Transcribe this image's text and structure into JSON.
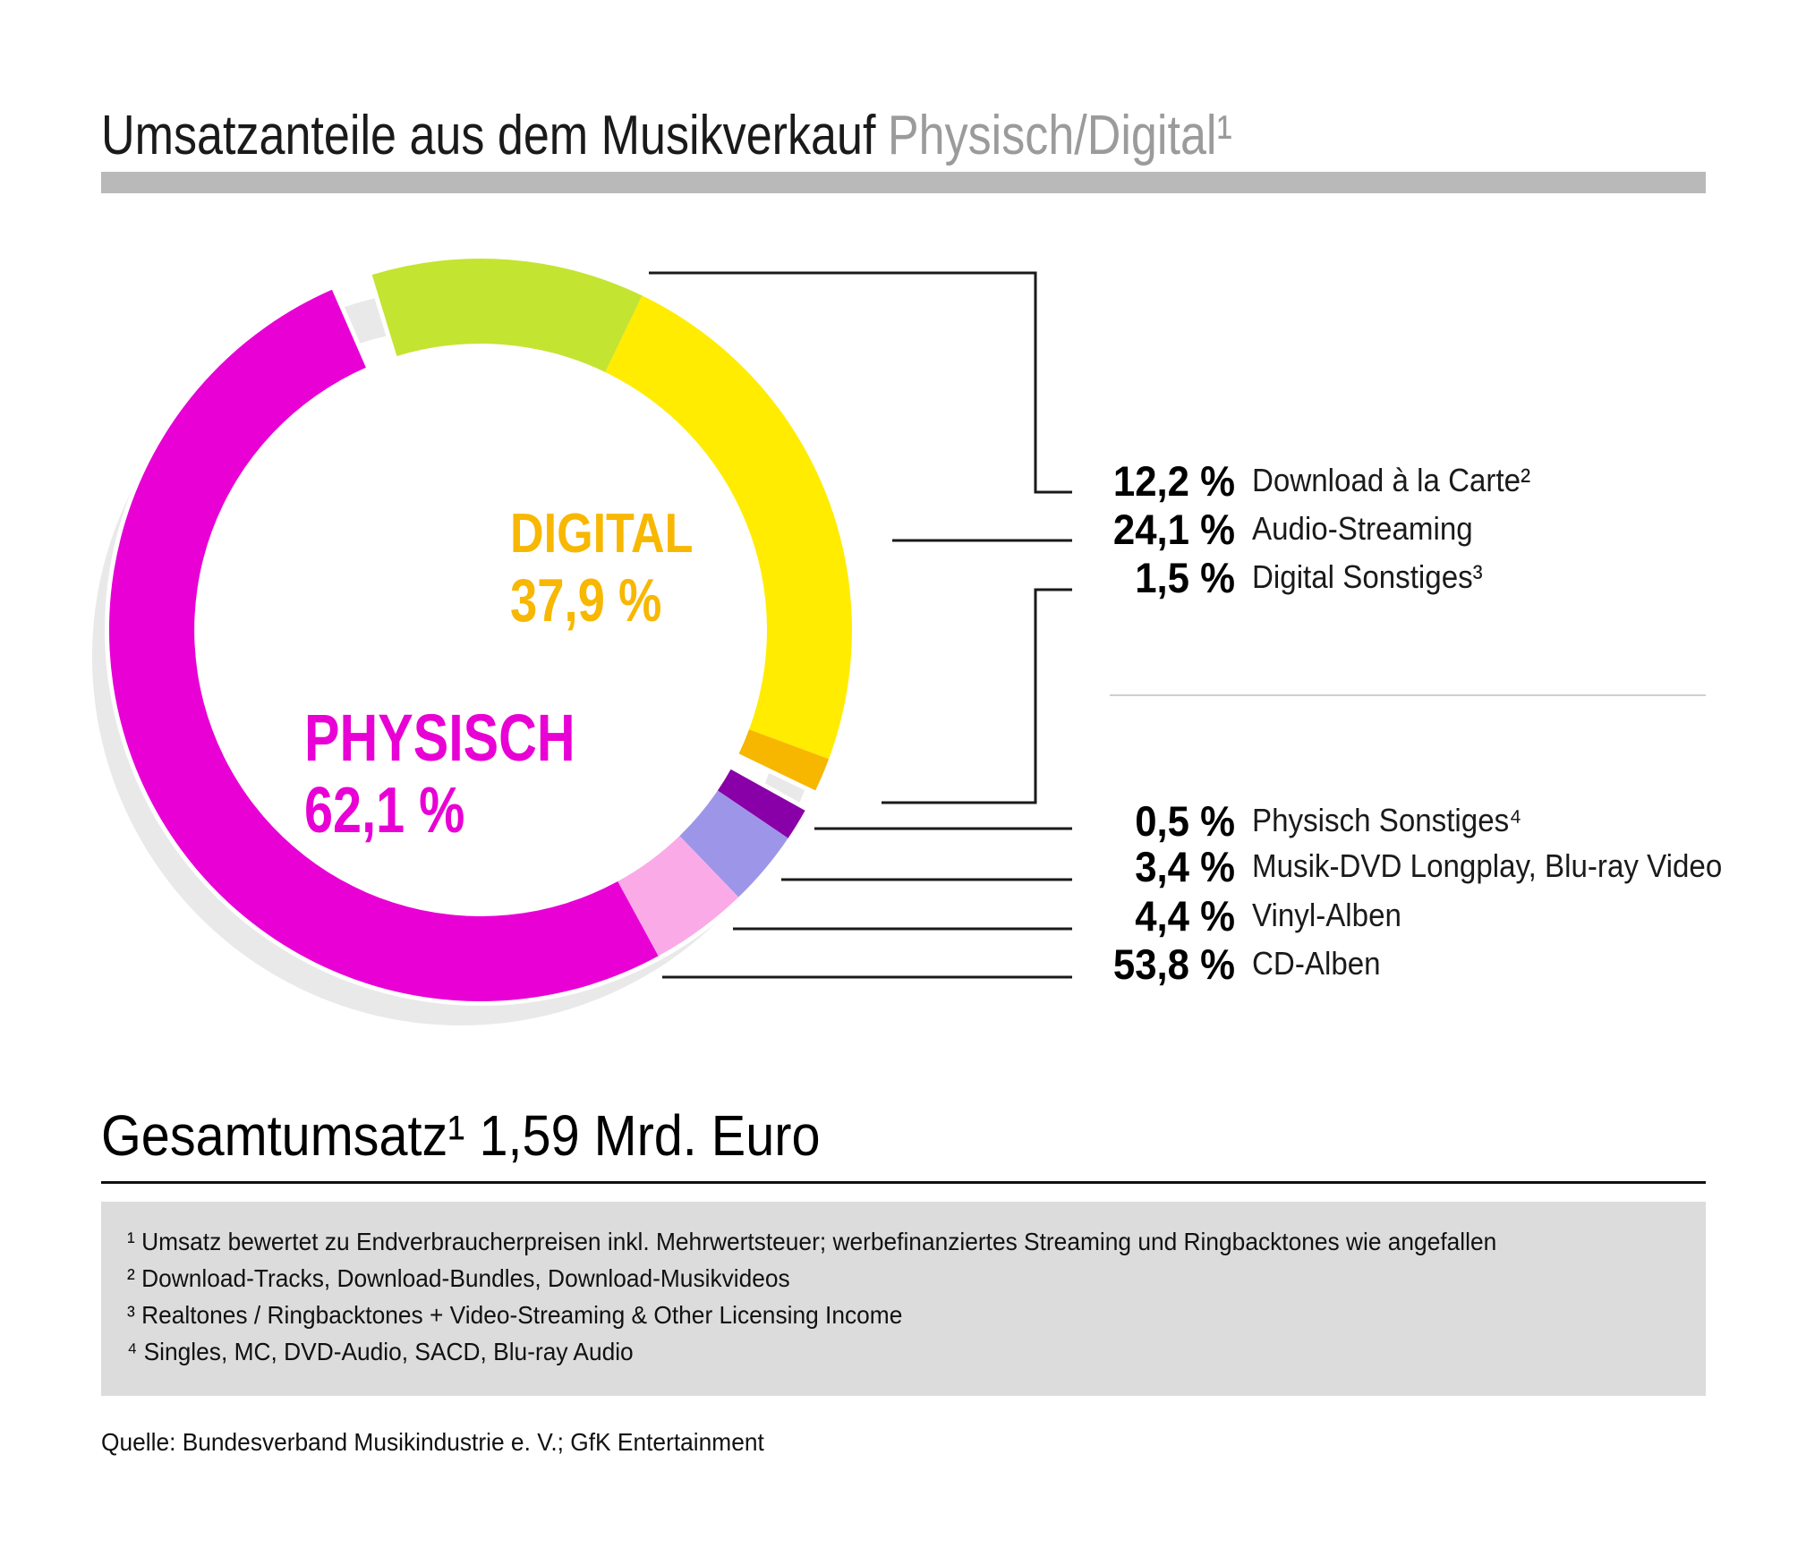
{
  "header": {
    "title": "Umsatzanteile aus dem Musikverkauf",
    "subtitle": "Physisch/Digital¹"
  },
  "chart_data": {
    "type": "pie",
    "donut": true,
    "title": "Umsatzanteile aus dem Musikverkauf Physisch/Digital¹",
    "unit": "%",
    "shadow_ring_color": "#e9e9e9",
    "groups": [
      {
        "name": "DIGITAL",
        "share": 37.9,
        "share_label": "37,9 %",
        "label_color": "#f8b700",
        "segments": [
          {
            "label": "Download à la Carte²",
            "value": 12.2,
            "value_label": "12,2 %",
            "color": "#c3e431"
          },
          {
            "label": "Audio-Streaming",
            "value": 24.1,
            "value_label": "24,1 %",
            "color": "#ffec00"
          },
          {
            "label": "Digital Sonstiges³",
            "value": 1.5,
            "value_label": "1,5 %",
            "color": "#f7b600"
          }
        ]
      },
      {
        "name": "PHYSISCH",
        "share": 62.1,
        "share_label": "62,1 %",
        "label_color": "#e800d5",
        "segments": [
          {
            "label": "Physisch Sonstiges⁴",
            "value": 0.5,
            "value_label": "0,5 %",
            "color": "#8a00a8"
          },
          {
            "label": "Musik-DVD Longplay, Blu-ray Video",
            "value": 3.4,
            "value_label": "3,4 %",
            "color": "#9d96e8"
          },
          {
            "label": "Vinyl-Alben",
            "value": 4.4,
            "value_label": "4,4 %",
            "color": "#fbaae8"
          },
          {
            "label": "CD-Alben",
            "value": 53.8,
            "value_label": "53,8 %",
            "color": "#e800d5"
          }
        ]
      }
    ]
  },
  "total": {
    "text": "Gesamtumsatz¹ 1,59 Mrd. Euro"
  },
  "footnotes": [
    "¹ Umsatz bewertet zu Endverbraucherpreisen inkl. Mehrwertsteuer; werbefinanziertes Streaming und Ringbacktones wie angefallen",
    "² Download-Tracks, Download-Bundles, Download-Musikvideos",
    "³ Realtones / Ringbacktones + Video-Streaming & Other Licensing Income",
    "⁴ Singles, MC, DVD-Audio, SACD, Blu-ray Audio"
  ],
  "source": "Quelle: Bundesverband Musikindustrie e. V.; GfK Entertainment"
}
